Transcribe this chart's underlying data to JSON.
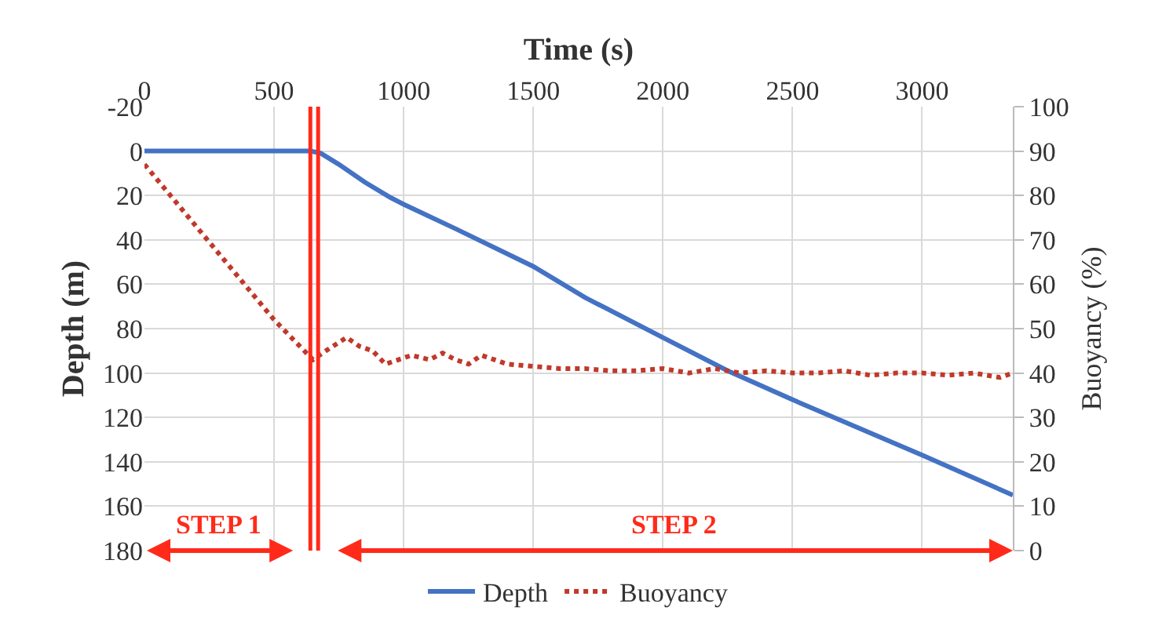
{
  "chart_data": {
    "type": "line",
    "xlabel": "Time (s)",
    "ylabel": "Depth (m)",
    "y2label": "Buoyancy (%)",
    "x": [
      0,
      640,
      680,
      750,
      850,
      950,
      1000,
      1200,
      1500,
      1700,
      2000,
      2250,
      2500,
      3000,
      3350
    ],
    "series": [
      {
        "name": "Depth",
        "color": "#4472c4",
        "line_style": "solid",
        "values": [
          0,
          0,
          1,
          6,
          14,
          21,
          24,
          35,
          52,
          66,
          84,
          99,
          112,
          137,
          155
        ]
      },
      {
        "name": "Buoyancy",
        "color": "#c0392b",
        "line_style": "dotted",
        "axis": "y2",
        "x": [
          0,
          100,
          200,
          300,
          400,
          500,
          600,
          650,
          700,
          780,
          830,
          880,
          930,
          980,
          1030,
          1100,
          1150,
          1200,
          1250,
          1300,
          1350,
          1400,
          1500,
          1600,
          1700,
          1800,
          1900,
          2000,
          2100,
          2200,
          2300,
          2400,
          2500,
          2600,
          2700,
          2800,
          2900,
          3000,
          3100,
          3200,
          3300,
          3350
        ],
        "values": [
          87,
          80,
          73,
          66,
          59,
          52,
          46,
          43,
          45,
          48,
          46,
          45,
          42,
          43,
          44,
          43,
          44.5,
          43,
          42,
          44,
          43,
          42,
          41.5,
          41,
          41,
          40.5,
          40.5,
          41,
          40,
          41,
          40,
          40.5,
          40,
          40,
          40.5,
          39.5,
          40,
          40,
          39.5,
          40,
          39,
          40
        ]
      }
    ],
    "xlim": [
      0,
      3350
    ],
    "xticks": [
      0,
      500,
      1000,
      1500,
      2000,
      2500,
      3000
    ],
    "ylim": [
      180,
      -20
    ],
    "yticks": [
      -20,
      0,
      20,
      40,
      60,
      80,
      100,
      120,
      140,
      160,
      180
    ],
    "y2lim": [
      0,
      100
    ],
    "y2ticks": [
      0,
      10,
      20,
      30,
      40,
      50,
      60,
      70,
      80,
      90,
      100
    ],
    "ref_lines": [
      {
        "axis": "x",
        "value": 640,
        "color": "#ff2a1a"
      },
      {
        "axis": "x",
        "value": 670,
        "color": "#ff2a1a"
      }
    ],
    "annotations": [
      "STEP 1",
      "STEP 2"
    ],
    "grid": true,
    "legend": "bottom"
  }
}
